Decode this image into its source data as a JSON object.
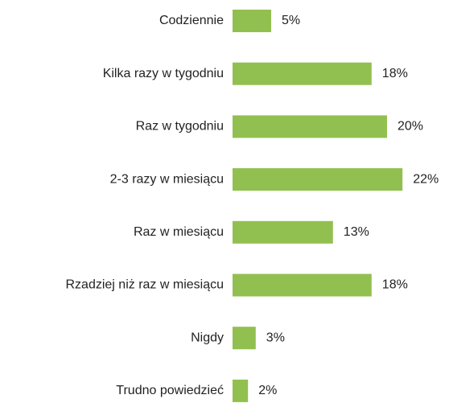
{
  "chart_data": {
    "type": "bar",
    "orientation": "horizontal",
    "categories": [
      "Codziennie",
      "Kilka razy w tygodniu",
      "Raz w tygodniu",
      "2-3 razy w miesiącu",
      "Raz w miesiącu",
      "Rzadziej niż raz w miesiącu",
      "Nigdy",
      "Trudno powiedzieć"
    ],
    "values": [
      5,
      18,
      20,
      22,
      13,
      18,
      3,
      2
    ],
    "value_labels": [
      "5%",
      "18%",
      "20%",
      "22%",
      "13%",
      "18%",
      "3%",
      "2%"
    ],
    "color": "#92c050"
  }
}
